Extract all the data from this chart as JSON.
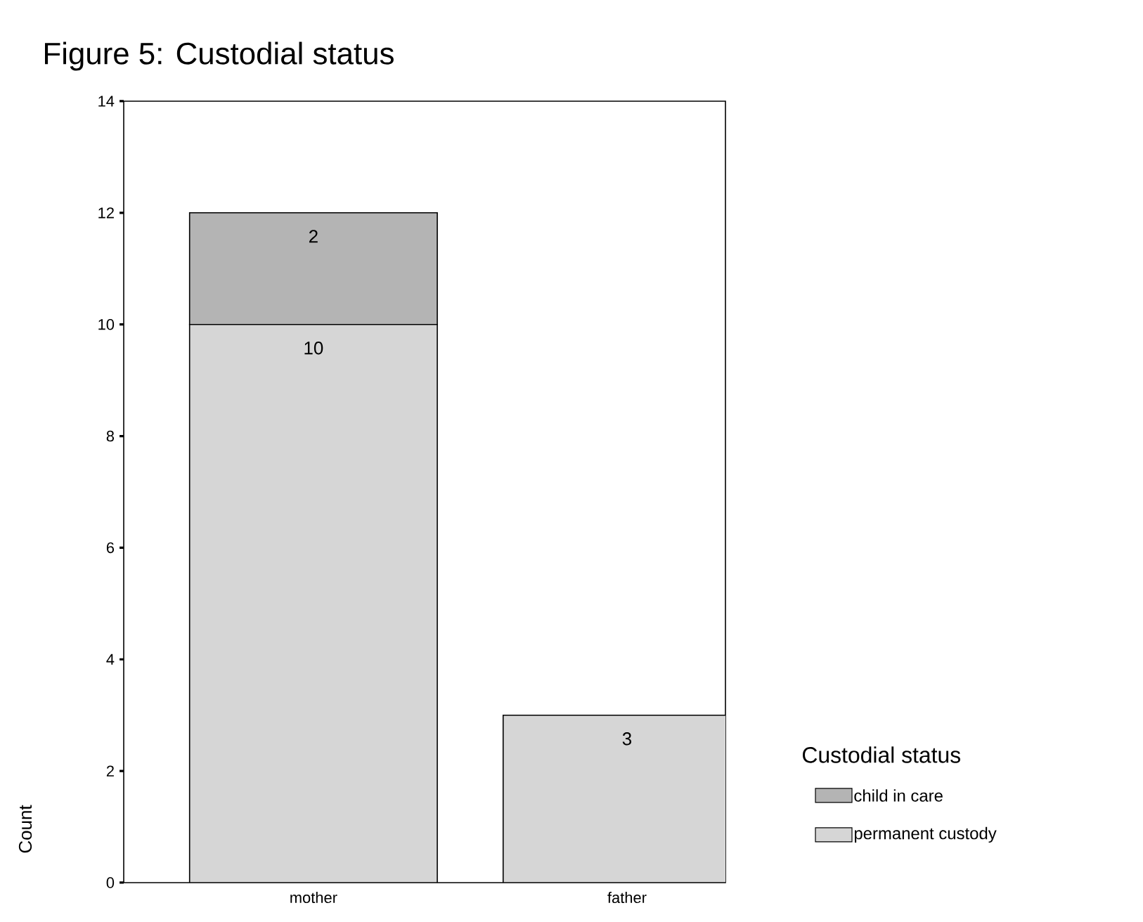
{
  "chart_data": {
    "type": "bar",
    "title": "Figure 5: Custodial status",
    "ylabel": "Count",
    "legend_title": "Custodial status",
    "categories": [
      "mother",
      "father"
    ],
    "series": [
      {
        "name": "permanent custody",
        "color": "#d6d6d6",
        "values": [
          10,
          3
        ]
      },
      {
        "name": "child in care",
        "color": "#b4b4b4",
        "values": [
          2,
          null
        ]
      }
    ],
    "stacked": true,
    "ylim": [
      0,
      14
    ],
    "yticks": [
      0,
      2,
      4,
      6,
      8,
      10,
      12,
      14
    ],
    "grid": false,
    "legend": "right",
    "data_labels": true
  }
}
